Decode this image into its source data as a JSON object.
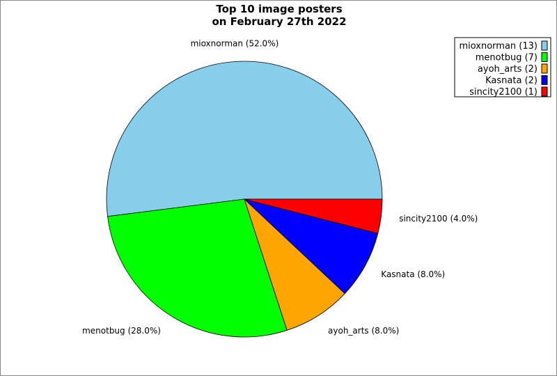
{
  "chart_data": {
    "type": "pie",
    "title_line1": "Top 10 image posters",
    "title_line2": "on February 27th 2022",
    "legend_position": "top-right",
    "slices": [
      {
        "name": "mioxnorman",
        "count": 13,
        "percent": 52.0,
        "color": "#87ceeb",
        "label": "mioxnorman (52.0%)",
        "legend": "mioxnorman (13)"
      },
      {
        "name": "menotbug",
        "count": 7,
        "percent": 28.0,
        "color": "#00ff00",
        "label": "menotbug (28.0%)",
        "legend": "menotbug (7)"
      },
      {
        "name": "ayoh_arts",
        "count": 2,
        "percent": 8.0,
        "color": "#ffa500",
        "label": "ayoh_arts (8.0%)",
        "legend": "ayoh_arts (2)"
      },
      {
        "name": "Kasnata",
        "count": 2,
        "percent": 8.0,
        "color": "#0000ff",
        "label": "Kasnata (8.0%)",
        "legend": "Kasnata (2)"
      },
      {
        "name": "sincity2100",
        "count": 1,
        "percent": 4.0,
        "color": "#ff0000",
        "label": "sincity2100 (4.0%)",
        "legend": "sincity2100 (1)"
      }
    ]
  }
}
